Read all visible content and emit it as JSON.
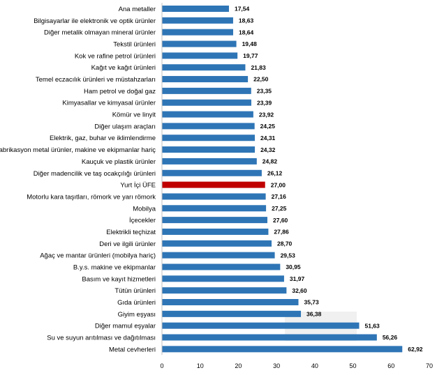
{
  "chart_data": {
    "type": "bar",
    "orientation": "horizontal",
    "title": "",
    "xlabel": "",
    "ylabel": "",
    "xlim": [
      0,
      70
    ],
    "xticks": [
      0,
      10,
      20,
      30,
      40,
      50,
      60,
      70
    ],
    "grid": false,
    "legend": "none",
    "bar_color": "#2e75b6",
    "highlight_color": "#c00000",
    "highlight_category": "Yurt İçi ÜFE",
    "categories": [
      "Ana metaller",
      "Bilgisayarlar ile elektronik ve optik ürünler",
      "Diğer metalik olmayan mineral ürünler",
      "Tekstil ürünleri",
      "Kok ve rafine petrol ürünleri",
      "Kağıt ve kağıt ürünleri",
      "Temel eczacılık ürünleri ve müstahzarları",
      "Ham petrol ve doğal gaz",
      "Kimyasallar ve kimyasal ürünler",
      "Kömür ve linyit",
      "Diğer ulaşım araçları",
      "Elektrik, gaz, buhar ve iklimlendirme",
      "Fabrikasyon metal ürünler, makine ve ekipmanlar hariç",
      "Kauçuk ve plastik ürünler",
      "Diğer madencilik ve taş ocakçılığı ürünleri",
      "Yurt İçi ÜFE",
      "Motorlu kara taşıtları, römork ve yarı römork",
      "Mobilya",
      "İçecekler",
      "Elektrikli teçhizat",
      "Deri ve ilgili ürünler",
      "Ağaç ve mantar ürünleri (mobilya hariç)",
      "B.y.s. makine ve ekipmanlar",
      "Basım ve kayıt hizmetleri",
      "Tütün ürünleri",
      "Gıda ürünleri",
      "Giyim eşyası",
      "Diğer mamul eşyalar",
      "Su ve suyun arıtılması ve dağıtılması",
      "Metal cevherleri"
    ],
    "values": [
      17.54,
      18.63,
      18.64,
      19.48,
      19.77,
      21.83,
      22.5,
      23.35,
      23.39,
      23.92,
      24.25,
      24.31,
      24.32,
      24.82,
      26.12,
      27.0,
      27.16,
      27.25,
      27.6,
      27.86,
      28.7,
      29.53,
      30.95,
      31.97,
      32.6,
      35.73,
      36.38,
      51.63,
      56.26,
      62.92
    ],
    "value_labels": [
      "17,54",
      "18,63",
      "18,64",
      "19,48",
      "19,77",
      "21,83",
      "22,50",
      "23,35",
      "23,39",
      "23,92",
      "24,25",
      "24,31",
      "24,32",
      "24,82",
      "26,12",
      "27,00",
      "27,16",
      "27,25",
      "27,60",
      "27,86",
      "28,70",
      "29,53",
      "30,95",
      "31,97",
      "32,60",
      "35,73",
      "36,38",
      "51,63",
      "56,26",
      "62,92"
    ]
  }
}
